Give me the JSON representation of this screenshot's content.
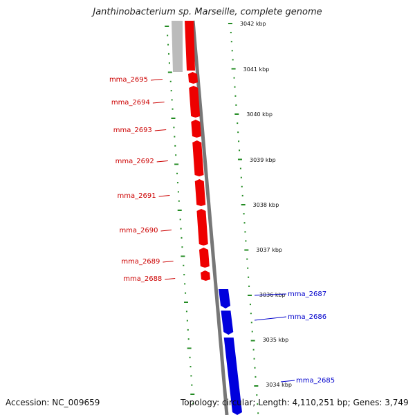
{
  "title": "Janthinobacterium sp. Marseille, complete genome",
  "footer": {
    "accession": "Accession: NC_009659",
    "topology": "Topology: circular; Length: 4,110,251 bp; Genes: 3,749"
  },
  "colors": {
    "forward_gene": "#ee0000",
    "reverse_gene": "#0000dd",
    "forward_label": "#cc0000",
    "reverse_label": "#0000cc",
    "tick": "#228b22",
    "backbone": "#777777",
    "grey_gene": "#bbbbbb"
  },
  "scale_ticks": [
    {
      "label": "3042 kbp"
    },
    {
      "label": "3041 kbp"
    },
    {
      "label": "3040 kbp"
    },
    {
      "label": "3039 kbp"
    },
    {
      "label": "3038 kbp"
    },
    {
      "label": "3037 kbp"
    },
    {
      "label": "3036 kbp"
    },
    {
      "label": "3035 kbp"
    },
    {
      "label": "3034 kbp"
    }
  ],
  "genes_forward": [
    {
      "name": "mma_2695"
    },
    {
      "name": "mma_2694"
    },
    {
      "name": "mma_2693"
    },
    {
      "name": "mma_2692"
    },
    {
      "name": "mma_2691"
    },
    {
      "name": "mma_2690"
    },
    {
      "name": "mma_2689"
    },
    {
      "name": "mma_2688"
    }
  ],
  "genes_reverse": [
    {
      "name": "mma_2687"
    },
    {
      "name": "mma_2686"
    },
    {
      "name": "mma_2685"
    }
  ]
}
